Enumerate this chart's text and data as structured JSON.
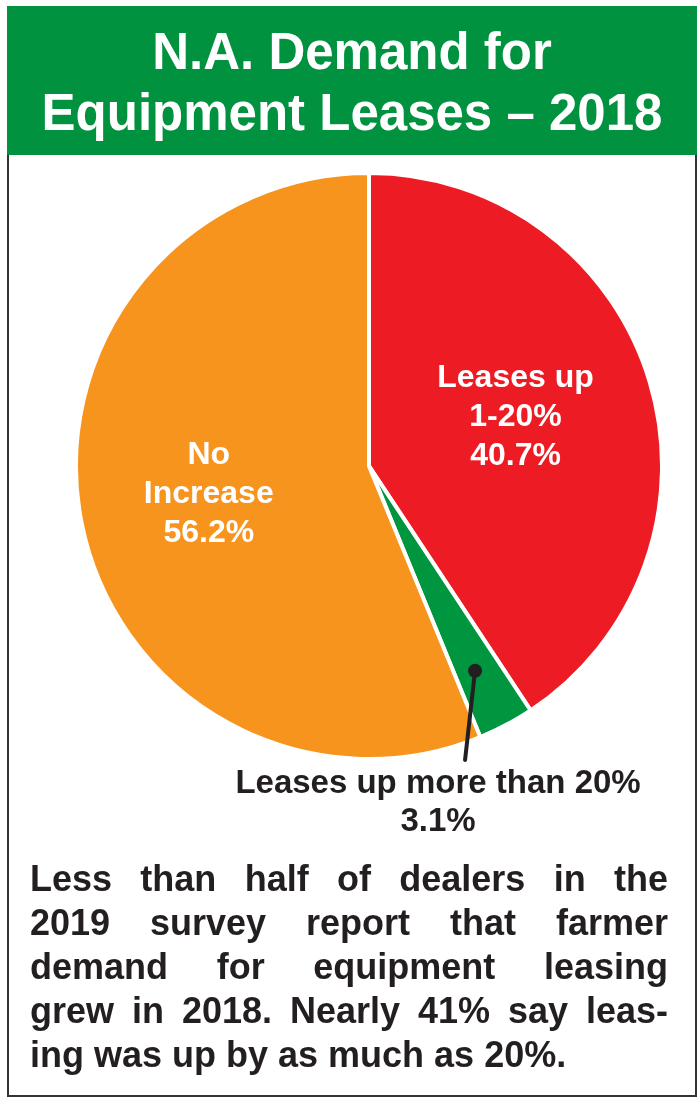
{
  "chart_data": {
    "type": "pie",
    "title": "N.A. Demand for\nEquipment Leases – 2018",
    "categories": [
      "Leases up\n1-20%",
      "Leases up more than 20%",
      "No\nIncrease"
    ],
    "values": [
      40.7,
      3.1,
      56.2
    ],
    "value_labels": [
      "40.7%",
      "3.1%",
      "56.2%"
    ],
    "colors": [
      "#ed1c24",
      "#00953f",
      "#f7941d"
    ],
    "annotations": [
      "Less than half of dealers in the\n2019 survey report that farmer\ndemand for equipment leasing\ngrew in 2018. Nearly 41% say leas-\ning was up by as much as 20%."
    ]
  }
}
